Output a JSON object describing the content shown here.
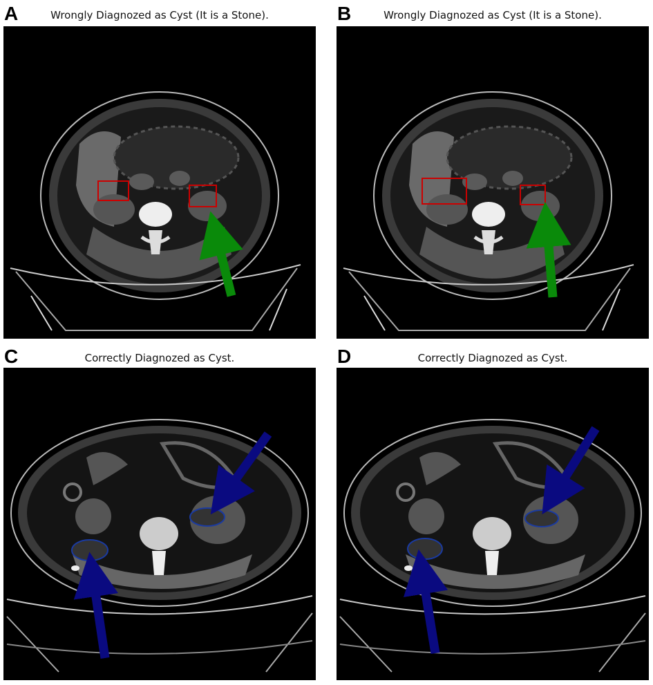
{
  "panels": [
    {
      "label": "A",
      "title": "Wrongly Diagnozed as Cyst (It is a Stone)."
    },
    {
      "label": "B",
      "title": "Wrongly Diagnozed as Cyst (It is a Stone)."
    },
    {
      "label": "C",
      "title": "Correctly Diagnozed as Cyst."
    },
    {
      "label": "D",
      "title": "Correctly Diagnozed as Cyst."
    }
  ]
}
